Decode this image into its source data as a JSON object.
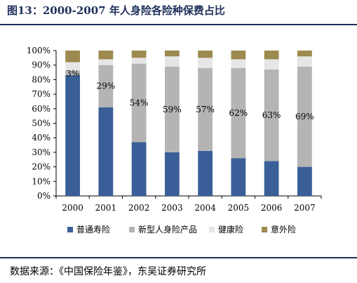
{
  "title": "图13：2000-2007 年人身险各险种保费占比",
  "source": "数据来源：《中国保险年鉴》，东吴证券研究所",
  "chart_data": {
    "type": "bar",
    "stacked": true,
    "percent": true,
    "categories": [
      "2000",
      "2001",
      "2002",
      "2003",
      "2004",
      "2005",
      "2006",
      "2007"
    ],
    "series": [
      {
        "name": "普通寿险",
        "color": "#3a5f98",
        "values": [
          83,
          61,
          37,
          30,
          31,
          26,
          24,
          20
        ]
      },
      {
        "name": "新型人身险产品",
        "color": "#b4b4b4",
        "values": [
          3,
          29,
          54,
          59,
          57,
          62,
          63,
          69
        ]
      },
      {
        "name": "健康险",
        "color": "#e6e6e6",
        "values": [
          6,
          4,
          4,
          7,
          7,
          6,
          7,
          7
        ]
      },
      {
        "name": "意外险",
        "color": "#9c8a4e",
        "values": [
          8,
          6,
          5,
          4,
          5,
          6,
          6,
          4
        ]
      }
    ],
    "data_labels": [
      "3%",
      "29%",
      "54%",
      "59%",
      "57%",
      "62%",
      "63%",
      "69%"
    ],
    "y_ticks": [
      "0%",
      "10%",
      "20%",
      "30%",
      "40%",
      "50%",
      "60%",
      "70%",
      "80%",
      "90%",
      "100%"
    ],
    "ylim": [
      0,
      100
    ],
    "legend_position": "bottom",
    "grid": false
  }
}
